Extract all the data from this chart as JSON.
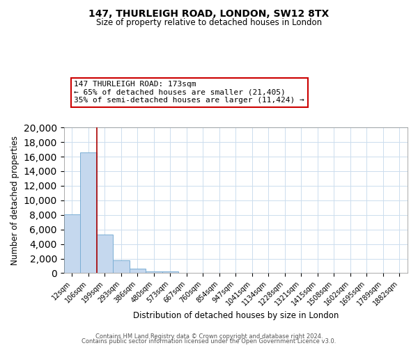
{
  "title": "147, THURLEIGH ROAD, LONDON, SW12 8TX",
  "subtitle": "Size of property relative to detached houses in London",
  "xlabel": "Distribution of detached houses by size in London",
  "ylabel": "Number of detached properties",
  "bar_color": "#c5d8ee",
  "bar_edge_color": "#7aaed4",
  "categories": [
    "12sqm",
    "106sqm",
    "199sqm",
    "293sqm",
    "386sqm",
    "480sqm",
    "573sqm",
    "667sqm",
    "760sqm",
    "854sqm",
    "947sqm",
    "1041sqm",
    "1134sqm",
    "1228sqm",
    "1321sqm",
    "1415sqm",
    "1508sqm",
    "1602sqm",
    "1695sqm",
    "1789sqm",
    "1882sqm"
  ],
  "values": [
    8100,
    16600,
    5300,
    1800,
    650,
    280,
    240,
    0,
    0,
    0,
    0,
    0,
    0,
    0,
    0,
    0,
    0,
    0,
    0,
    0,
    0
  ],
  "ylim": [
    0,
    20000
  ],
  "yticks": [
    0,
    2000,
    4000,
    6000,
    8000,
    10000,
    12000,
    14000,
    16000,
    18000,
    20000
  ],
  "property_line_bin": 1,
  "annotation_text": "147 THURLEIGH ROAD: 173sqm\n← 65% of detached houses are smaller (21,405)\n35% of semi-detached houses are larger (11,424) →",
  "annotation_box_color": "#ffffff",
  "annotation_box_edge_color": "#cc0000",
  "vline_color": "#aa0000",
  "footer_line1": "Contains HM Land Registry data © Crown copyright and database right 2024.",
  "footer_line2": "Contains public sector information licensed under the Open Government Licence v3.0.",
  "background_color": "#ffffff",
  "grid_color": "#ccddee"
}
